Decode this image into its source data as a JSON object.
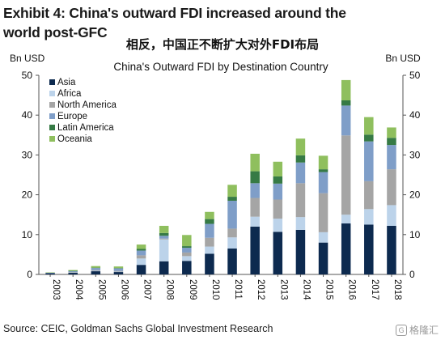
{
  "header": {
    "title": "Exhibit 4: China's outward FDI increased around the world post-GFC",
    "subtitle_cn": "相反，中国正不断扩大对外FDI布局"
  },
  "footer": {
    "source": "Source: CEIC, Goldman Sachs Global Investment Research",
    "watermark": "格隆汇"
  },
  "chart_data": {
    "type": "bar",
    "stacked": true,
    "title": "China's Outward FDI by Destination Country",
    "ylabel_left": "Bn USD",
    "ylabel_right": "Bn USD",
    "ylim": [
      0,
      50
    ],
    "yticks": [
      0,
      10,
      20,
      30,
      40,
      50
    ],
    "grid": false,
    "legend_position": "top-left",
    "categories": [
      "2003",
      "2004",
      "2005",
      "2006",
      "2007",
      "2008",
      "2009",
      "2010",
      "2011",
      "2012",
      "2013",
      "2014",
      "2015",
      "2016",
      "2017",
      "2018"
    ],
    "series": [
      {
        "name": "Asia",
        "color": "#0d2a4f",
        "values": [
          0.3,
          0.4,
          0.8,
          0.6,
          2.4,
          3.3,
          3.4,
          5.2,
          6.5,
          12.0,
          10.7,
          11.2,
          8.0,
          12.8,
          12.5,
          12.2
        ]
      },
      {
        "name": "Africa",
        "color": "#bcd3ea",
        "values": [
          0.0,
          0.1,
          0.1,
          0.1,
          1.6,
          5.5,
          1.2,
          1.8,
          2.8,
          2.5,
          3.3,
          3.2,
          2.6,
          2.2,
          3.9,
          5.2
        ]
      },
      {
        "name": "North America",
        "color": "#a5a5a5",
        "values": [
          0.0,
          0.1,
          0.2,
          0.2,
          0.8,
          0.2,
          0.9,
          2.2,
          2.2,
          4.7,
          4.8,
          8.5,
          9.8,
          19.9,
          7.0,
          9.0
        ]
      },
      {
        "name": "Europe",
        "color": "#7f9ec8",
        "values": [
          0.1,
          0.2,
          0.5,
          0.6,
          1.2,
          0.7,
          1.2,
          3.5,
          7.0,
          3.7,
          4.0,
          5.2,
          5.3,
          7.5,
          10.0,
          6.1
        ]
      },
      {
        "name": "Latin America",
        "color": "#367a45",
        "values": [
          0.0,
          0.1,
          0.1,
          0.1,
          0.4,
          0.7,
          0.4,
          1.2,
          1.0,
          3.0,
          1.8,
          1.8,
          0.7,
          1.3,
          1.7,
          1.8
        ]
      },
      {
        "name": "Oceania",
        "color": "#8fbf5e",
        "values": [
          0.1,
          0.2,
          0.4,
          0.4,
          1.1,
          1.8,
          2.8,
          1.8,
          3.0,
          4.4,
          3.7,
          4.2,
          3.4,
          5.1,
          4.4,
          2.6
        ]
      }
    ]
  }
}
